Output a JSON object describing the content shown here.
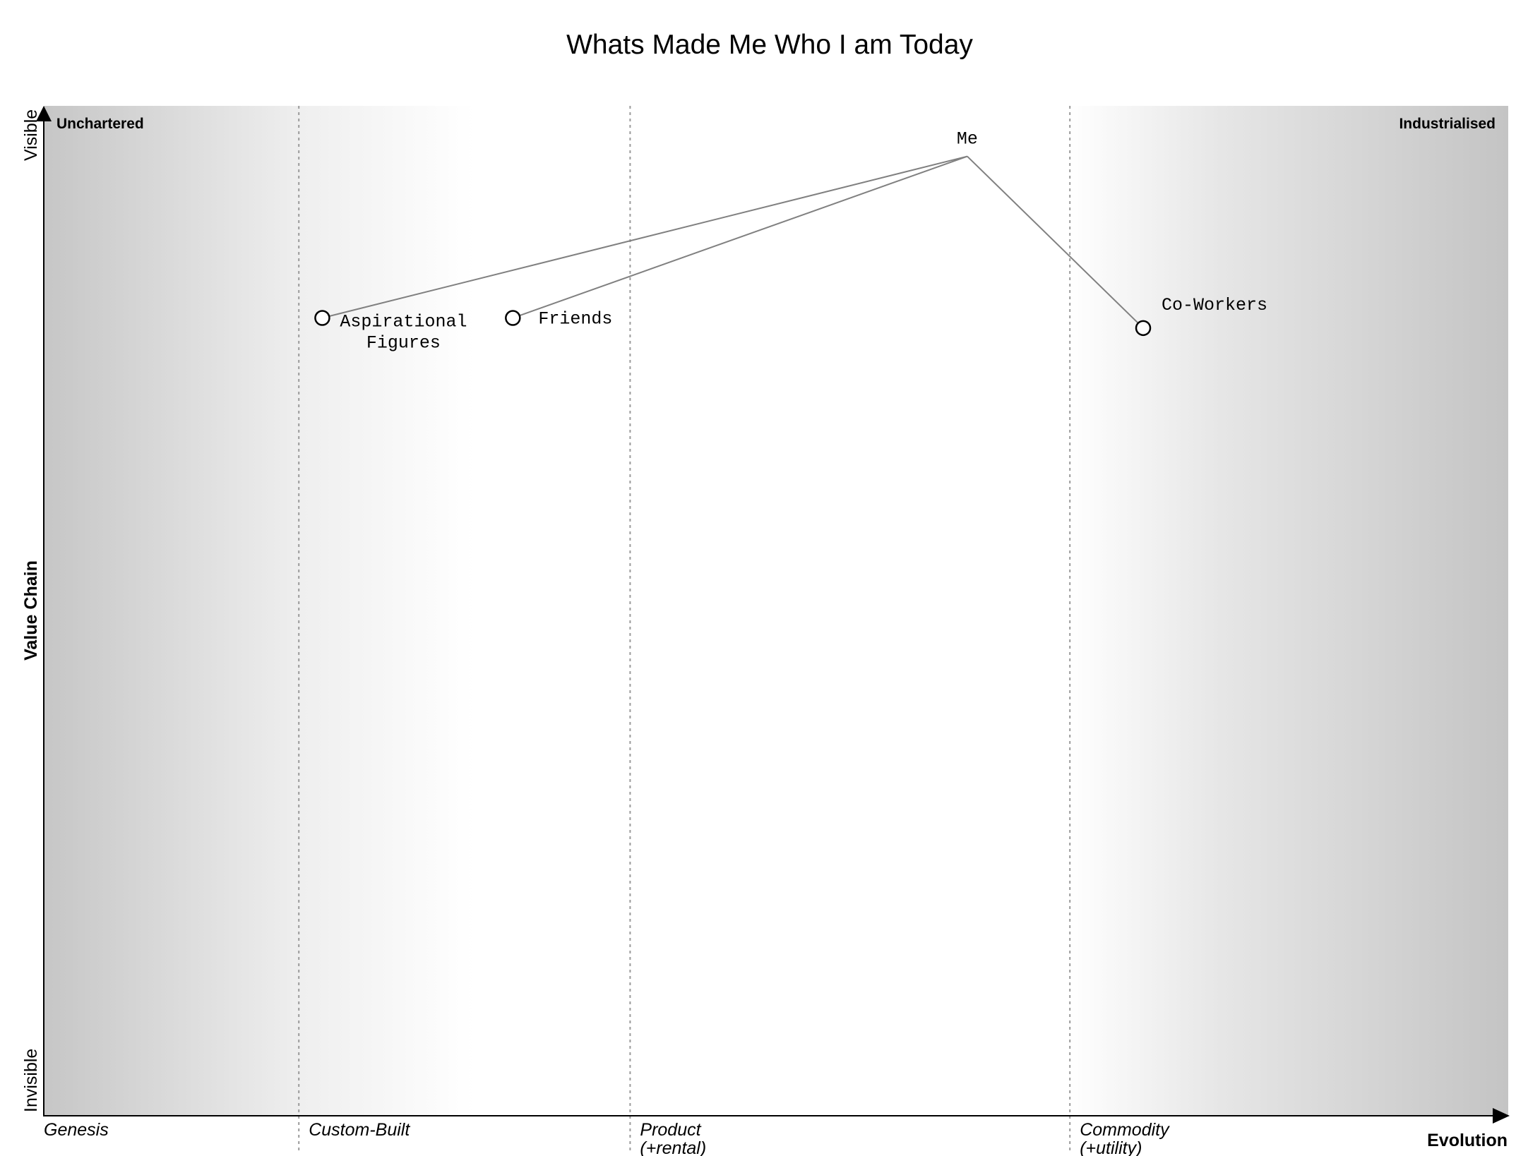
{
  "title": "Whats Made Me Who I am Today",
  "corners": {
    "left": "Unchartered",
    "right": "Industrialised"
  },
  "y_axis": {
    "label": "Value Chain",
    "top": "Visible",
    "bottom": "Invisible"
  },
  "x_axis": {
    "label": "Evolution",
    "stages": [
      {
        "lines": [
          "Genesis"
        ],
        "start": 0.0
      },
      {
        "lines": [
          "Custom-Built"
        ],
        "start": 0.174
      },
      {
        "lines": [
          "Product",
          "(+rental)"
        ],
        "start": 0.4
      },
      {
        "lines": [
          "Commodity",
          "(+utility)"
        ],
        "start": 0.7
      }
    ]
  },
  "components": [
    {
      "id": "me",
      "lines": [
        "Me"
      ],
      "evolution": 0.63,
      "visibility": 0.95,
      "node": false,
      "label_pos": "above"
    },
    {
      "id": "aspirational-figures",
      "lines": [
        "Aspirational",
        "Figures"
      ],
      "evolution": 0.19,
      "visibility": 0.79,
      "node": true,
      "label_pos": "below-right"
    },
    {
      "id": "friends",
      "lines": [
        "Friends"
      ],
      "evolution": 0.32,
      "visibility": 0.79,
      "node": true,
      "label_pos": "right"
    },
    {
      "id": "co-workers",
      "lines": [
        "Co-Workers"
      ],
      "evolution": 0.75,
      "visibility": 0.78,
      "node": true,
      "label_pos": "above-right"
    }
  ],
  "links": [
    [
      "me",
      "aspirational-figures"
    ],
    [
      "me",
      "friends"
    ],
    [
      "me",
      "co-workers"
    ]
  ],
  "colors": {
    "edge_shade": "#c6c6c6",
    "link": "#808080",
    "stage_divider": "#9a9a9a"
  }
}
